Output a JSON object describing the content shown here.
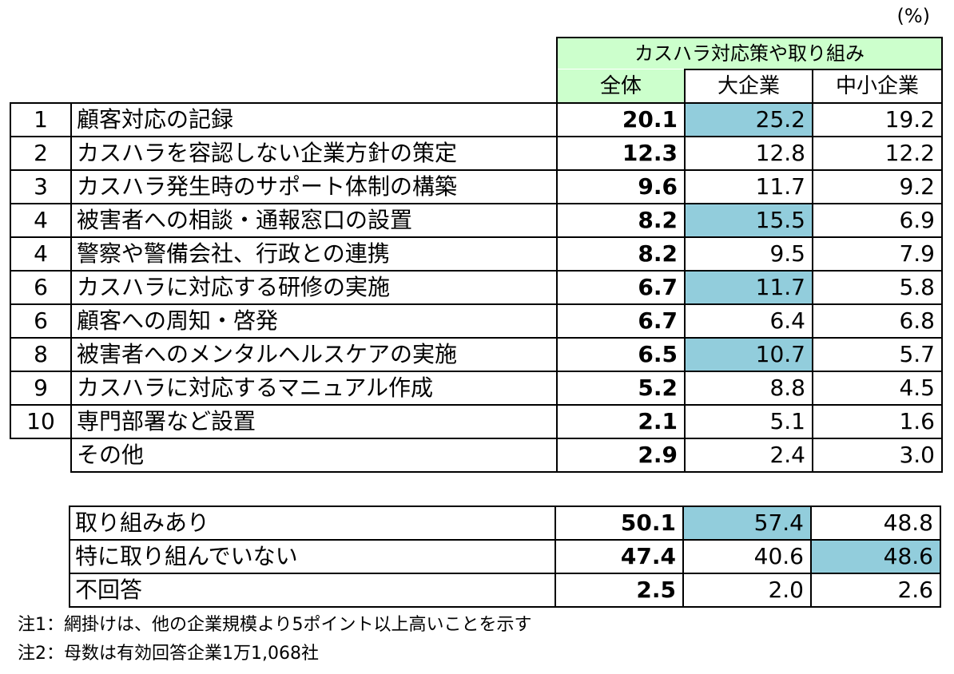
{
  "unit": "(%)",
  "header": {
    "group": "カスハラ対応策や取り組み",
    "columns": [
      "全体",
      "大企業",
      "中小企業"
    ]
  },
  "chart_data": {
    "type": "table",
    "columns": [
      "全体",
      "大企業",
      "中小企業"
    ],
    "rows": [
      {
        "rank": "1",
        "label": "顧客対応の記録",
        "values": [
          "20.1",
          "25.2",
          "19.2"
        ],
        "highlight": [
          false,
          true,
          false
        ]
      },
      {
        "rank": "2",
        "label": "カスハラを容認しない企業方針の策定",
        "values": [
          "12.3",
          "12.8",
          "12.2"
        ],
        "highlight": [
          false,
          false,
          false
        ]
      },
      {
        "rank": "3",
        "label": "カスハラ発生時のサポート体制の構築",
        "values": [
          "9.6",
          "11.7",
          "9.2"
        ],
        "highlight": [
          false,
          false,
          false
        ]
      },
      {
        "rank": "4",
        "label": "被害者への相談・通報窓口の設置",
        "values": [
          "8.2",
          "15.5",
          "6.9"
        ],
        "highlight": [
          false,
          true,
          false
        ]
      },
      {
        "rank": "4",
        "label": "警察や警備会社、行政との連携",
        "values": [
          "8.2",
          "9.5",
          "7.9"
        ],
        "highlight": [
          false,
          false,
          false
        ]
      },
      {
        "rank": "6",
        "label": "カスハラに対応する研修の実施",
        "values": [
          "6.7",
          "11.7",
          "5.8"
        ],
        "highlight": [
          false,
          true,
          false
        ]
      },
      {
        "rank": "6",
        "label": "顧客への周知・啓発",
        "values": [
          "6.7",
          "6.4",
          "6.8"
        ],
        "highlight": [
          false,
          false,
          false
        ]
      },
      {
        "rank": "8",
        "label": "被害者へのメンタルヘルスケアの実施",
        "values": [
          "6.5",
          "10.7",
          "5.7"
        ],
        "highlight": [
          false,
          true,
          false
        ]
      },
      {
        "rank": "9",
        "label": "カスハラに対応するマニュアル作成",
        "values": [
          "5.2",
          "8.8",
          "4.5"
        ],
        "highlight": [
          false,
          false,
          false
        ]
      },
      {
        "rank": "10",
        "label": "専門部署など設置",
        "values": [
          "2.1",
          "5.1",
          "1.6"
        ],
        "highlight": [
          false,
          false,
          false
        ]
      },
      {
        "rank": "",
        "label": "その他",
        "values": [
          "2.9",
          "2.4",
          "3.0"
        ],
        "highlight": [
          false,
          false,
          false
        ]
      }
    ],
    "summary": [
      {
        "label": "取り組みあり",
        "values": [
          "50.1",
          "57.4",
          "48.8"
        ],
        "highlight": [
          false,
          true,
          false
        ]
      },
      {
        "label": "特に取り組んでいない",
        "values": [
          "47.4",
          "40.6",
          "48.6"
        ],
        "highlight": [
          false,
          false,
          true
        ]
      },
      {
        "label": "不回答",
        "values": [
          "2.5",
          "2.0",
          "2.6"
        ],
        "highlight": [
          false,
          false,
          false
        ]
      }
    ],
    "highlight_color": "#92cddc",
    "header_color": "#ccffcc"
  },
  "notes": {
    "note1": "注1：網掛けは、他の企業規模より5ポイント以上高いことを示す",
    "note2": "注2：母数は有効回答企業1万1,068社"
  }
}
